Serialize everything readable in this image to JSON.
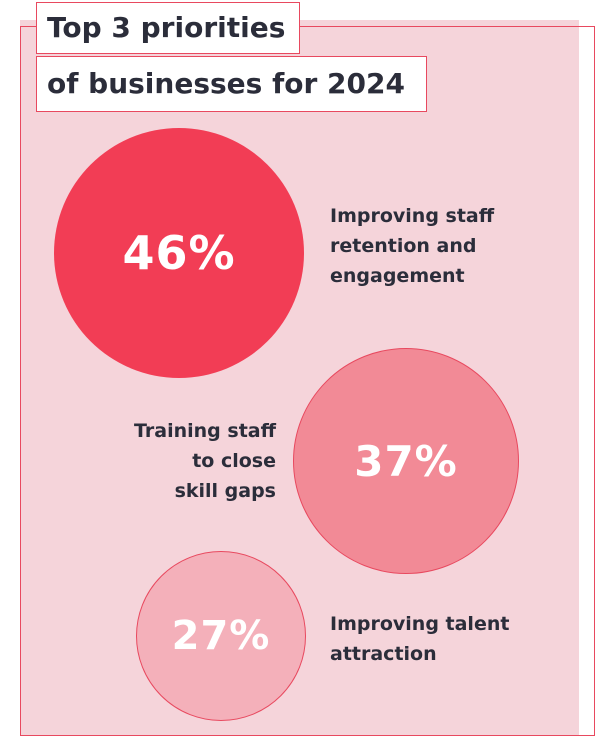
{
  "title": {
    "line1": "Top 3 priorities",
    "line2": "of businesses for 2024"
  },
  "colors": {
    "accent": "#e8495f",
    "background_panel": "#f5d4da",
    "bubble_1": "#f23d55",
    "bubble_2": "#f28a96",
    "bubble_3": "#f4b0ba",
    "text": "#2b2d3a"
  },
  "chart_data": {
    "type": "bubble",
    "title": "Top 3 priorities of businesses for 2024",
    "unit": "%",
    "items": [
      {
        "value": 46,
        "value_label": "46%",
        "label_lines": [
          "Improving staff",
          "retention and",
          "engagement"
        ]
      },
      {
        "value": 37,
        "value_label": "37%",
        "label_lines": [
          "Training staff",
          "to close",
          "skill gaps"
        ]
      },
      {
        "value": 27,
        "value_label": "27%",
        "label_lines": [
          "Improving talent",
          "attraction"
        ]
      }
    ]
  }
}
